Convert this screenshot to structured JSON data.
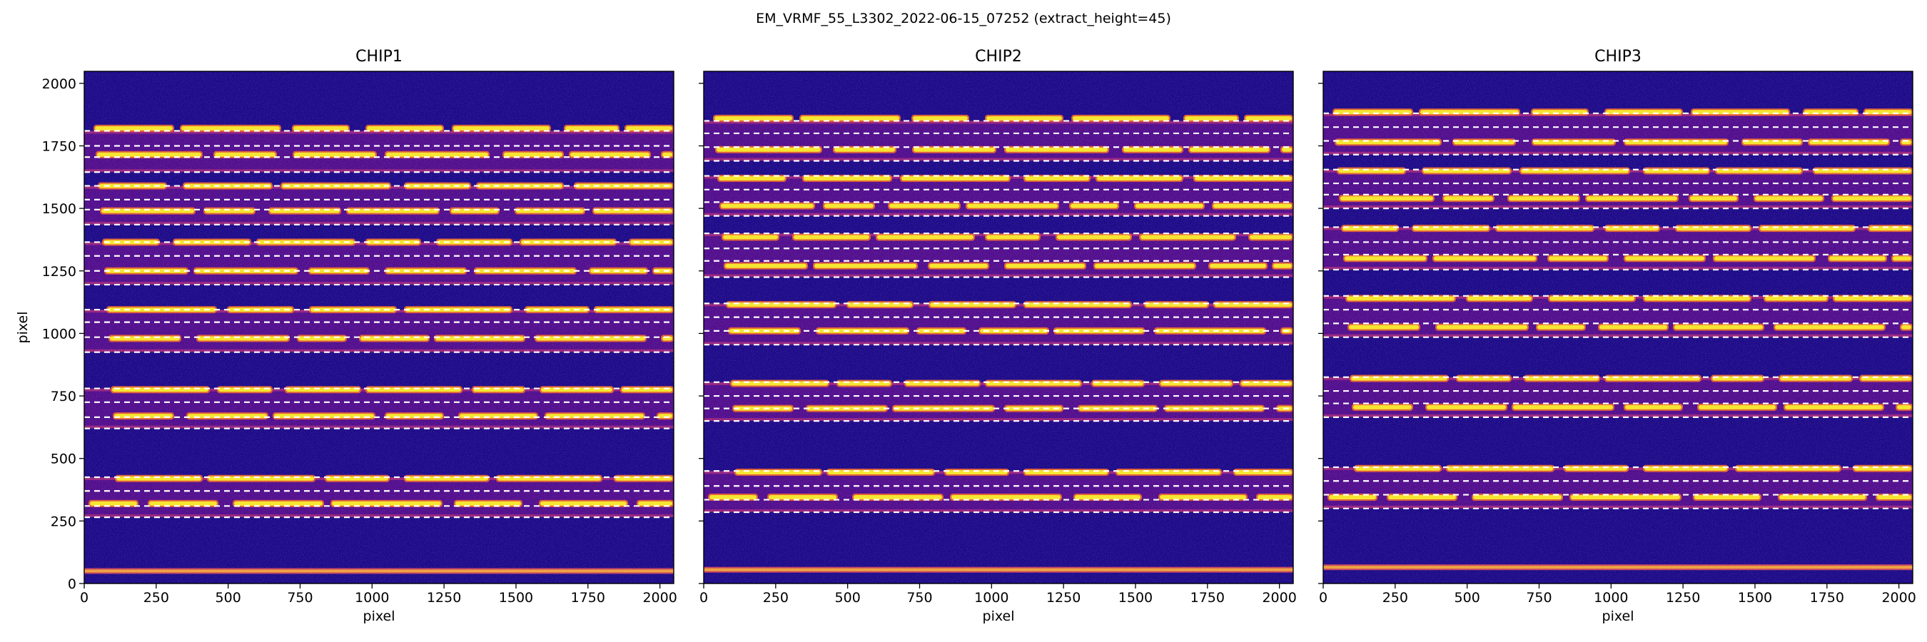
{
  "figure": {
    "suptitle": "EM_VRMF_55_L3302_2022-06-15_07252  (extract_height=45)"
  },
  "chart_data": [
    {
      "type": "heatmap",
      "title": "CHIP1",
      "xlabel": "pixel",
      "ylabel": "pixel",
      "xlim": [
        0,
        2048
      ],
      "ylim": [
        0,
        2048
      ],
      "xticks": [
        0,
        250,
        500,
        750,
        1000,
        1250,
        1500,
        1750,
        2000
      ],
      "yticks": [
        0,
        250,
        500,
        750,
        1000,
        1250,
        1500,
        1750,
        2000
      ],
      "colormap": "plasma",
      "background_color": "#1c0b8a",
      "orders": [
        {
          "y_bottom": 265,
          "y_top": 425
        },
        {
          "y_bottom": 620,
          "y_top": 780
        },
        {
          "y_bottom": 925,
          "y_top": 1095
        },
        {
          "y_bottom": 1195,
          "y_top": 1365
        },
        {
          "y_bottom": 1435,
          "y_top": 1590
        },
        {
          "y_bottom": 1645,
          "y_top": 1810
        }
      ],
      "dashed_trace_lines_y": [
        265,
        310,
        370,
        425,
        620,
        665,
        725,
        780,
        925,
        985,
        1045,
        1095,
        1195,
        1250,
        1310,
        1365,
        1435,
        1495,
        1535,
        1590,
        1645,
        1705,
        1750,
        1810
      ],
      "bright_traces_y": [
        320,
        420,
        670,
        775,
        980,
        1095,
        1250,
        1365,
        1490,
        1590,
        1715,
        1820
      ],
      "extra_bright_band_y": 50
    },
    {
      "type": "heatmap",
      "title": "CHIP2",
      "xlabel": "pixel",
      "ylabel": "",
      "xlim": [
        0,
        2048
      ],
      "ylim": [
        0,
        2048
      ],
      "xticks": [
        0,
        250,
        500,
        750,
        1000,
        1250,
        1500,
        1750,
        2000
      ],
      "yticks": [
        0,
        250,
        500,
        750,
        1000,
        1250,
        1500,
        1750,
        2000
      ],
      "colormap": "plasma",
      "background_color": "#1c0b8a",
      "orders": [
        {
          "y_bottom": 285,
          "y_top": 450
        },
        {
          "y_bottom": 650,
          "y_top": 805
        },
        {
          "y_bottom": 955,
          "y_top": 1120
        },
        {
          "y_bottom": 1225,
          "y_top": 1400
        },
        {
          "y_bottom": 1470,
          "y_top": 1630
        },
        {
          "y_bottom": 1690,
          "y_top": 1850
        }
      ],
      "dashed_trace_lines_y": [
        285,
        335,
        390,
        450,
        650,
        700,
        750,
        805,
        955,
        1010,
        1065,
        1120,
        1225,
        1290,
        1340,
        1400,
        1470,
        1525,
        1575,
        1630,
        1690,
        1745,
        1800,
        1850
      ],
      "bright_traces_y": [
        345,
        445,
        700,
        800,
        1010,
        1115,
        1270,
        1385,
        1510,
        1620,
        1735,
        1860
      ],
      "extra_bright_band_y": 55
    },
    {
      "type": "heatmap",
      "title": "CHIP3",
      "xlabel": "pixel",
      "ylabel": "",
      "xlim": [
        0,
        2048
      ],
      "ylim": [
        0,
        2048
      ],
      "xticks": [
        0,
        250,
        500,
        750,
        1000,
        1250,
        1500,
        1750,
        2000
      ],
      "yticks": [
        0,
        250,
        500,
        750,
        1000,
        1250,
        1500,
        1750,
        2000
      ],
      "colormap": "plasma",
      "background_color": "#1c0b8a",
      "orders": [
        {
          "y_bottom": 300,
          "y_top": 465
        },
        {
          "y_bottom": 665,
          "y_top": 825
        },
        {
          "y_bottom": 985,
          "y_top": 1150
        },
        {
          "y_bottom": 1255,
          "y_top": 1425
        },
        {
          "y_bottom": 1500,
          "y_top": 1655
        },
        {
          "y_bottom": 1715,
          "y_top": 1880
        }
      ],
      "dashed_trace_lines_y": [
        300,
        355,
        410,
        465,
        665,
        720,
        770,
        825,
        985,
        1040,
        1095,
        1150,
        1255,
        1315,
        1365,
        1425,
        1500,
        1555,
        1600,
        1655,
        1715,
        1770,
        1825,
        1880
      ],
      "bright_traces_y": [
        345,
        460,
        705,
        820,
        1025,
        1140,
        1300,
        1420,
        1540,
        1650,
        1765,
        1885
      ],
      "extra_bright_band_y": 65
    }
  ]
}
